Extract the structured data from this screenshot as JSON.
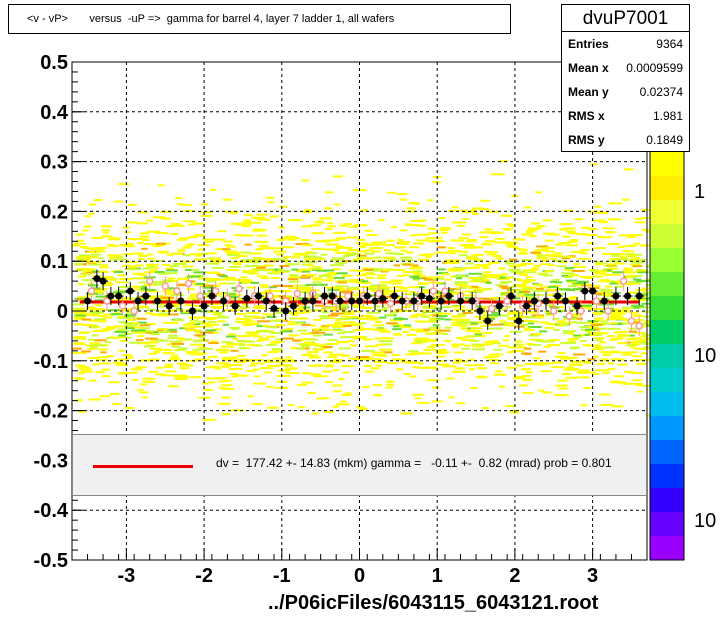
{
  "title": "<v - vP>       versus  -uP =>  gamma for barrel 4, layer 7 ladder 1, all wafers",
  "stats": {
    "name": "dvuP7001",
    "rows": [
      {
        "label": "Entries",
        "value": "9364"
      },
      {
        "label": "Mean x",
        "value": "0.0009599"
      },
      {
        "label": "Mean y",
        "value": "0.02374"
      },
      {
        "label": "RMS x",
        "value": "1.981"
      },
      {
        "label": "RMS y",
        "value": "0.1849"
      }
    ]
  },
  "fit_text": "dv =  177.42 +- 14.83 (mkm) gamma =   -0.11 +-  0.82 (mrad) prob = 0.801",
  "footer": "../P06icFiles/6043115_6043121.root",
  "colors": {
    "fit_line": "#ee0000",
    "profile_black": "#000000",
    "profile_open": "#ff9999",
    "hist_yellow": "#ffff00",
    "hist_green": "#66cc33"
  },
  "chart_data": {
    "type": "heatmap",
    "xlim": [
      -3.7,
      3.7
    ],
    "ylim": [
      -0.5,
      0.5
    ],
    "x_ticks": [
      "-3",
      "-2",
      "-1",
      "0",
      "1",
      "2",
      "3"
    ],
    "y_ticks": [
      "0.5",
      "0.4",
      "0.3",
      "0.2",
      "0.1",
      "0",
      "-0.1",
      "-0.2",
      "-0.3",
      "-0.4",
      "-0.5"
    ],
    "z_ticks": [
      "1",
      "10",
      "10"
    ],
    "grid": true,
    "fit": {
      "x0": -3.6,
      "x1": 3.6,
      "y": 0.018
    },
    "profile_black": [
      [
        -3.5,
        0.02
      ],
      [
        -3.38,
        0.065
      ],
      [
        -3.3,
        0.06
      ],
      [
        -3.2,
        0.03
      ],
      [
        -3.1,
        0.03
      ],
      [
        -2.95,
        0.04
      ],
      [
        -2.85,
        0.02
      ],
      [
        -2.75,
        0.03
      ],
      [
        -2.6,
        0.02
      ],
      [
        -2.45,
        0.01
      ],
      [
        -2.3,
        0.02
      ],
      [
        -2.15,
        0.0
      ],
      [
        -2.0,
        0.01
      ],
      [
        -1.9,
        0.03
      ],
      [
        -1.75,
        0.02
      ],
      [
        -1.6,
        0.01
      ],
      [
        -1.45,
        0.025
      ],
      [
        -1.3,
        0.03
      ],
      [
        -1.2,
        0.02
      ],
      [
        -1.1,
        0.005
      ],
      [
        -0.95,
        0.0
      ],
      [
        -0.85,
        0.01
      ],
      [
        -0.7,
        0.02
      ],
      [
        -0.6,
        0.02
      ],
      [
        -0.45,
        0.03
      ],
      [
        -0.35,
        0.03
      ],
      [
        -0.25,
        0.02
      ],
      [
        -0.1,
        0.02
      ],
      [
        0.0,
        0.02
      ],
      [
        0.1,
        0.03
      ],
      [
        0.2,
        0.02
      ],
      [
        0.3,
        0.025
      ],
      [
        0.45,
        0.03
      ],
      [
        0.55,
        0.02
      ],
      [
        0.7,
        0.02
      ],
      [
        0.8,
        0.03
      ],
      [
        0.9,
        0.025
      ],
      [
        1.05,
        0.02
      ],
      [
        1.15,
        0.03
      ],
      [
        1.3,
        0.02
      ],
      [
        1.45,
        0.02
      ],
      [
        1.55,
        0.0
      ],
      [
        1.65,
        -0.02
      ],
      [
        1.8,
        0.01
      ],
      [
        1.95,
        0.03
      ],
      [
        2.05,
        -0.02
      ],
      [
        2.15,
        0.01
      ],
      [
        2.25,
        0.02
      ],
      [
        2.4,
        0.02
      ],
      [
        2.55,
        0.03
      ],
      [
        2.65,
        0.02
      ],
      [
        2.8,
        0.01
      ],
      [
        2.9,
        0.04
      ],
      [
        3.0,
        0.04
      ],
      [
        3.15,
        0.02
      ],
      [
        3.3,
        0.03
      ],
      [
        3.45,
        0.03
      ],
      [
        3.6,
        0.03
      ]
    ],
    "profile_open": [
      [
        -3.45,
        0.04
      ],
      [
        -3.25,
        0.02
      ],
      [
        -3.05,
        0.01
      ],
      [
        -2.9,
        0.0
      ],
      [
        -2.7,
        0.06
      ],
      [
        -2.5,
        0.05
      ],
      [
        -2.35,
        0.04
      ],
      [
        -2.2,
        0.055
      ],
      [
        -2.05,
        0.03
      ],
      [
        -1.85,
        0.04
      ],
      [
        -1.7,
        0.025
      ],
      [
        -1.55,
        0.045
      ],
      [
        -1.35,
        0.03
      ],
      [
        -1.15,
        0.03
      ],
      [
        -0.95,
        0.02
      ],
      [
        -0.8,
        0.035
      ],
      [
        -0.6,
        0.035
      ],
      [
        -0.45,
        0.02
      ],
      [
        -0.3,
        0.02
      ],
      [
        -0.15,
        0.03
      ],
      [
        0.05,
        0.03
      ],
      [
        0.25,
        0.035
      ],
      [
        0.4,
        0.015
      ],
      [
        0.6,
        0.02
      ],
      [
        0.75,
        0.02
      ],
      [
        0.95,
        0.04
      ],
      [
        1.1,
        0.04
      ],
      [
        1.3,
        0.03
      ],
      [
        1.5,
        0.02
      ],
      [
        1.7,
        0.005
      ],
      [
        1.9,
        0.02
      ],
      [
        2.1,
        0.01
      ],
      [
        2.3,
        0.015
      ],
      [
        2.5,
        0.0
      ],
      [
        2.7,
        -0.01
      ],
      [
        2.85,
        0.0
      ],
      [
        3.05,
        0.02
      ],
      [
        3.2,
        0.0
      ],
      [
        3.4,
        0.06
      ],
      [
        3.5,
        -0.02
      ],
      [
        3.6,
        -0.03
      ]
    ]
  }
}
